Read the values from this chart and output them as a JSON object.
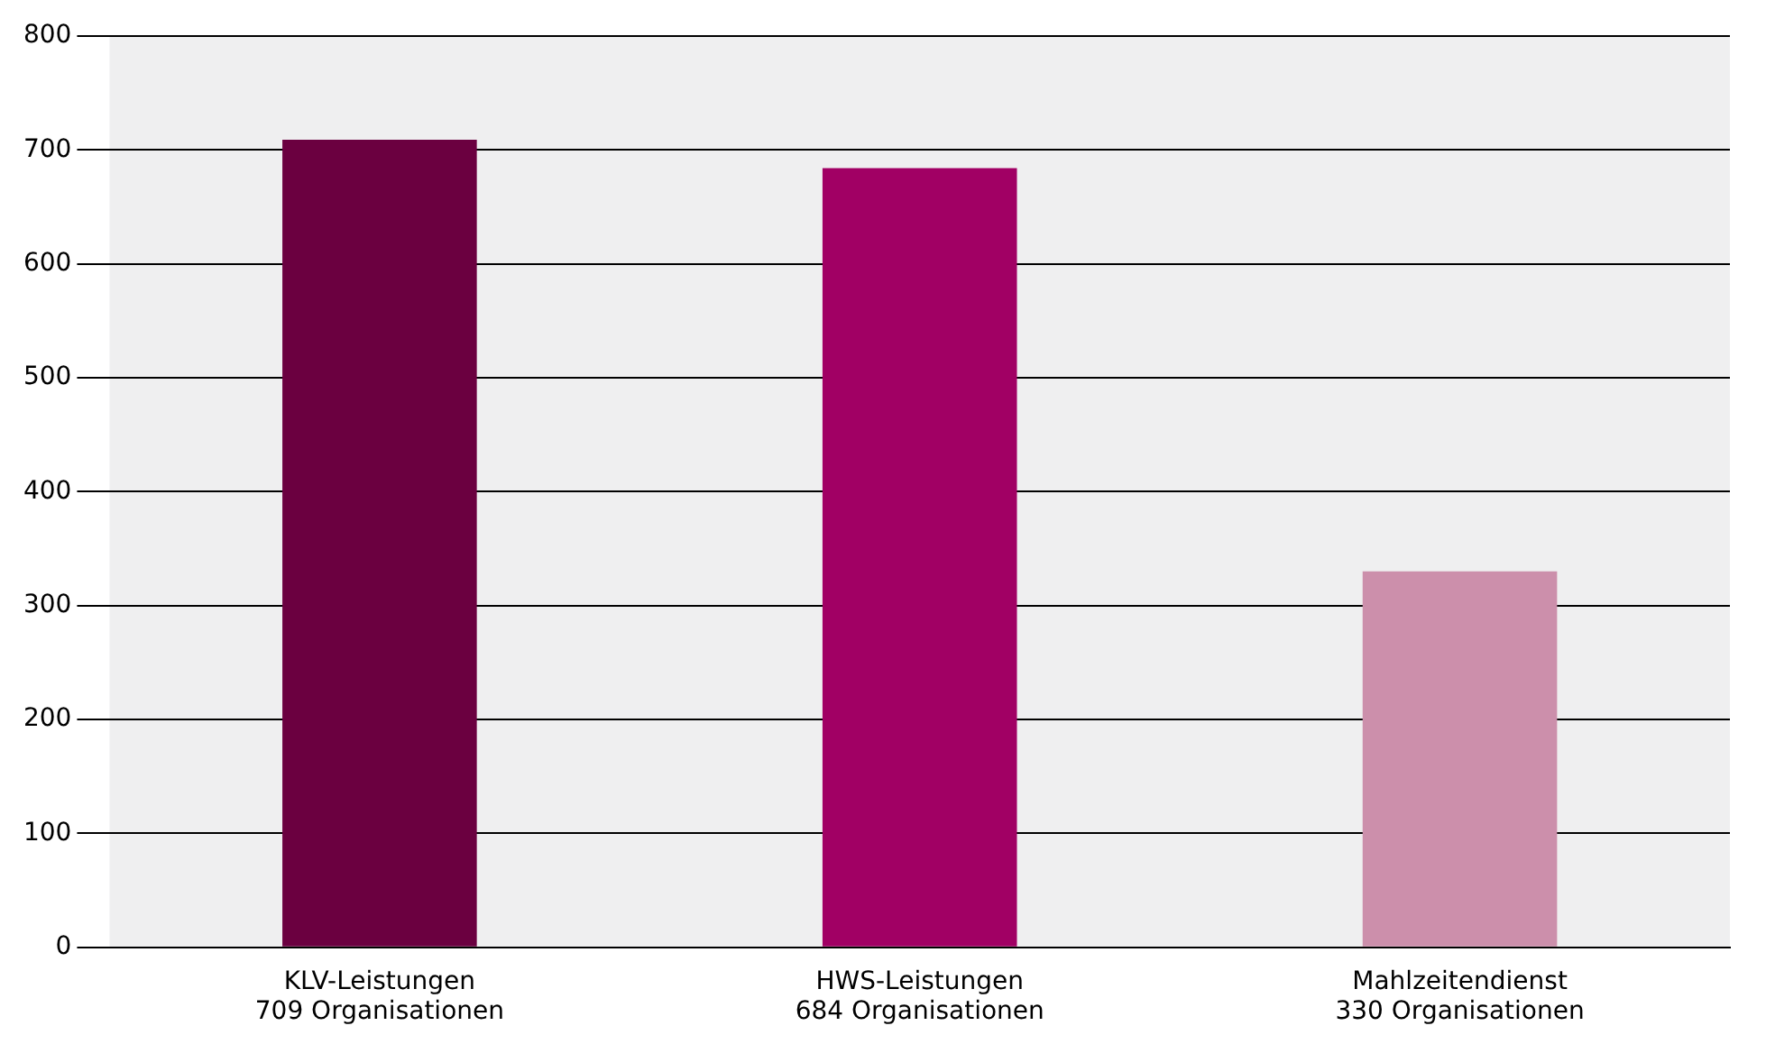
{
  "chart_data": {
    "type": "bar",
    "categories": [
      "KLV-Leistungen\n709 Organisationen",
      "HWS-Leistungen\n684 Organisationen",
      "Mahlzeitendienst\n330 Organisationen"
    ],
    "values": [
      709,
      684,
      330
    ],
    "colors": [
      "#6b0040",
      "#a10064",
      "#cc8fab"
    ],
    "ylim": [
      0,
      800
    ],
    "yticks": [
      0,
      100,
      200,
      300,
      400,
      500,
      600,
      700,
      800
    ],
    "grid": "y"
  }
}
